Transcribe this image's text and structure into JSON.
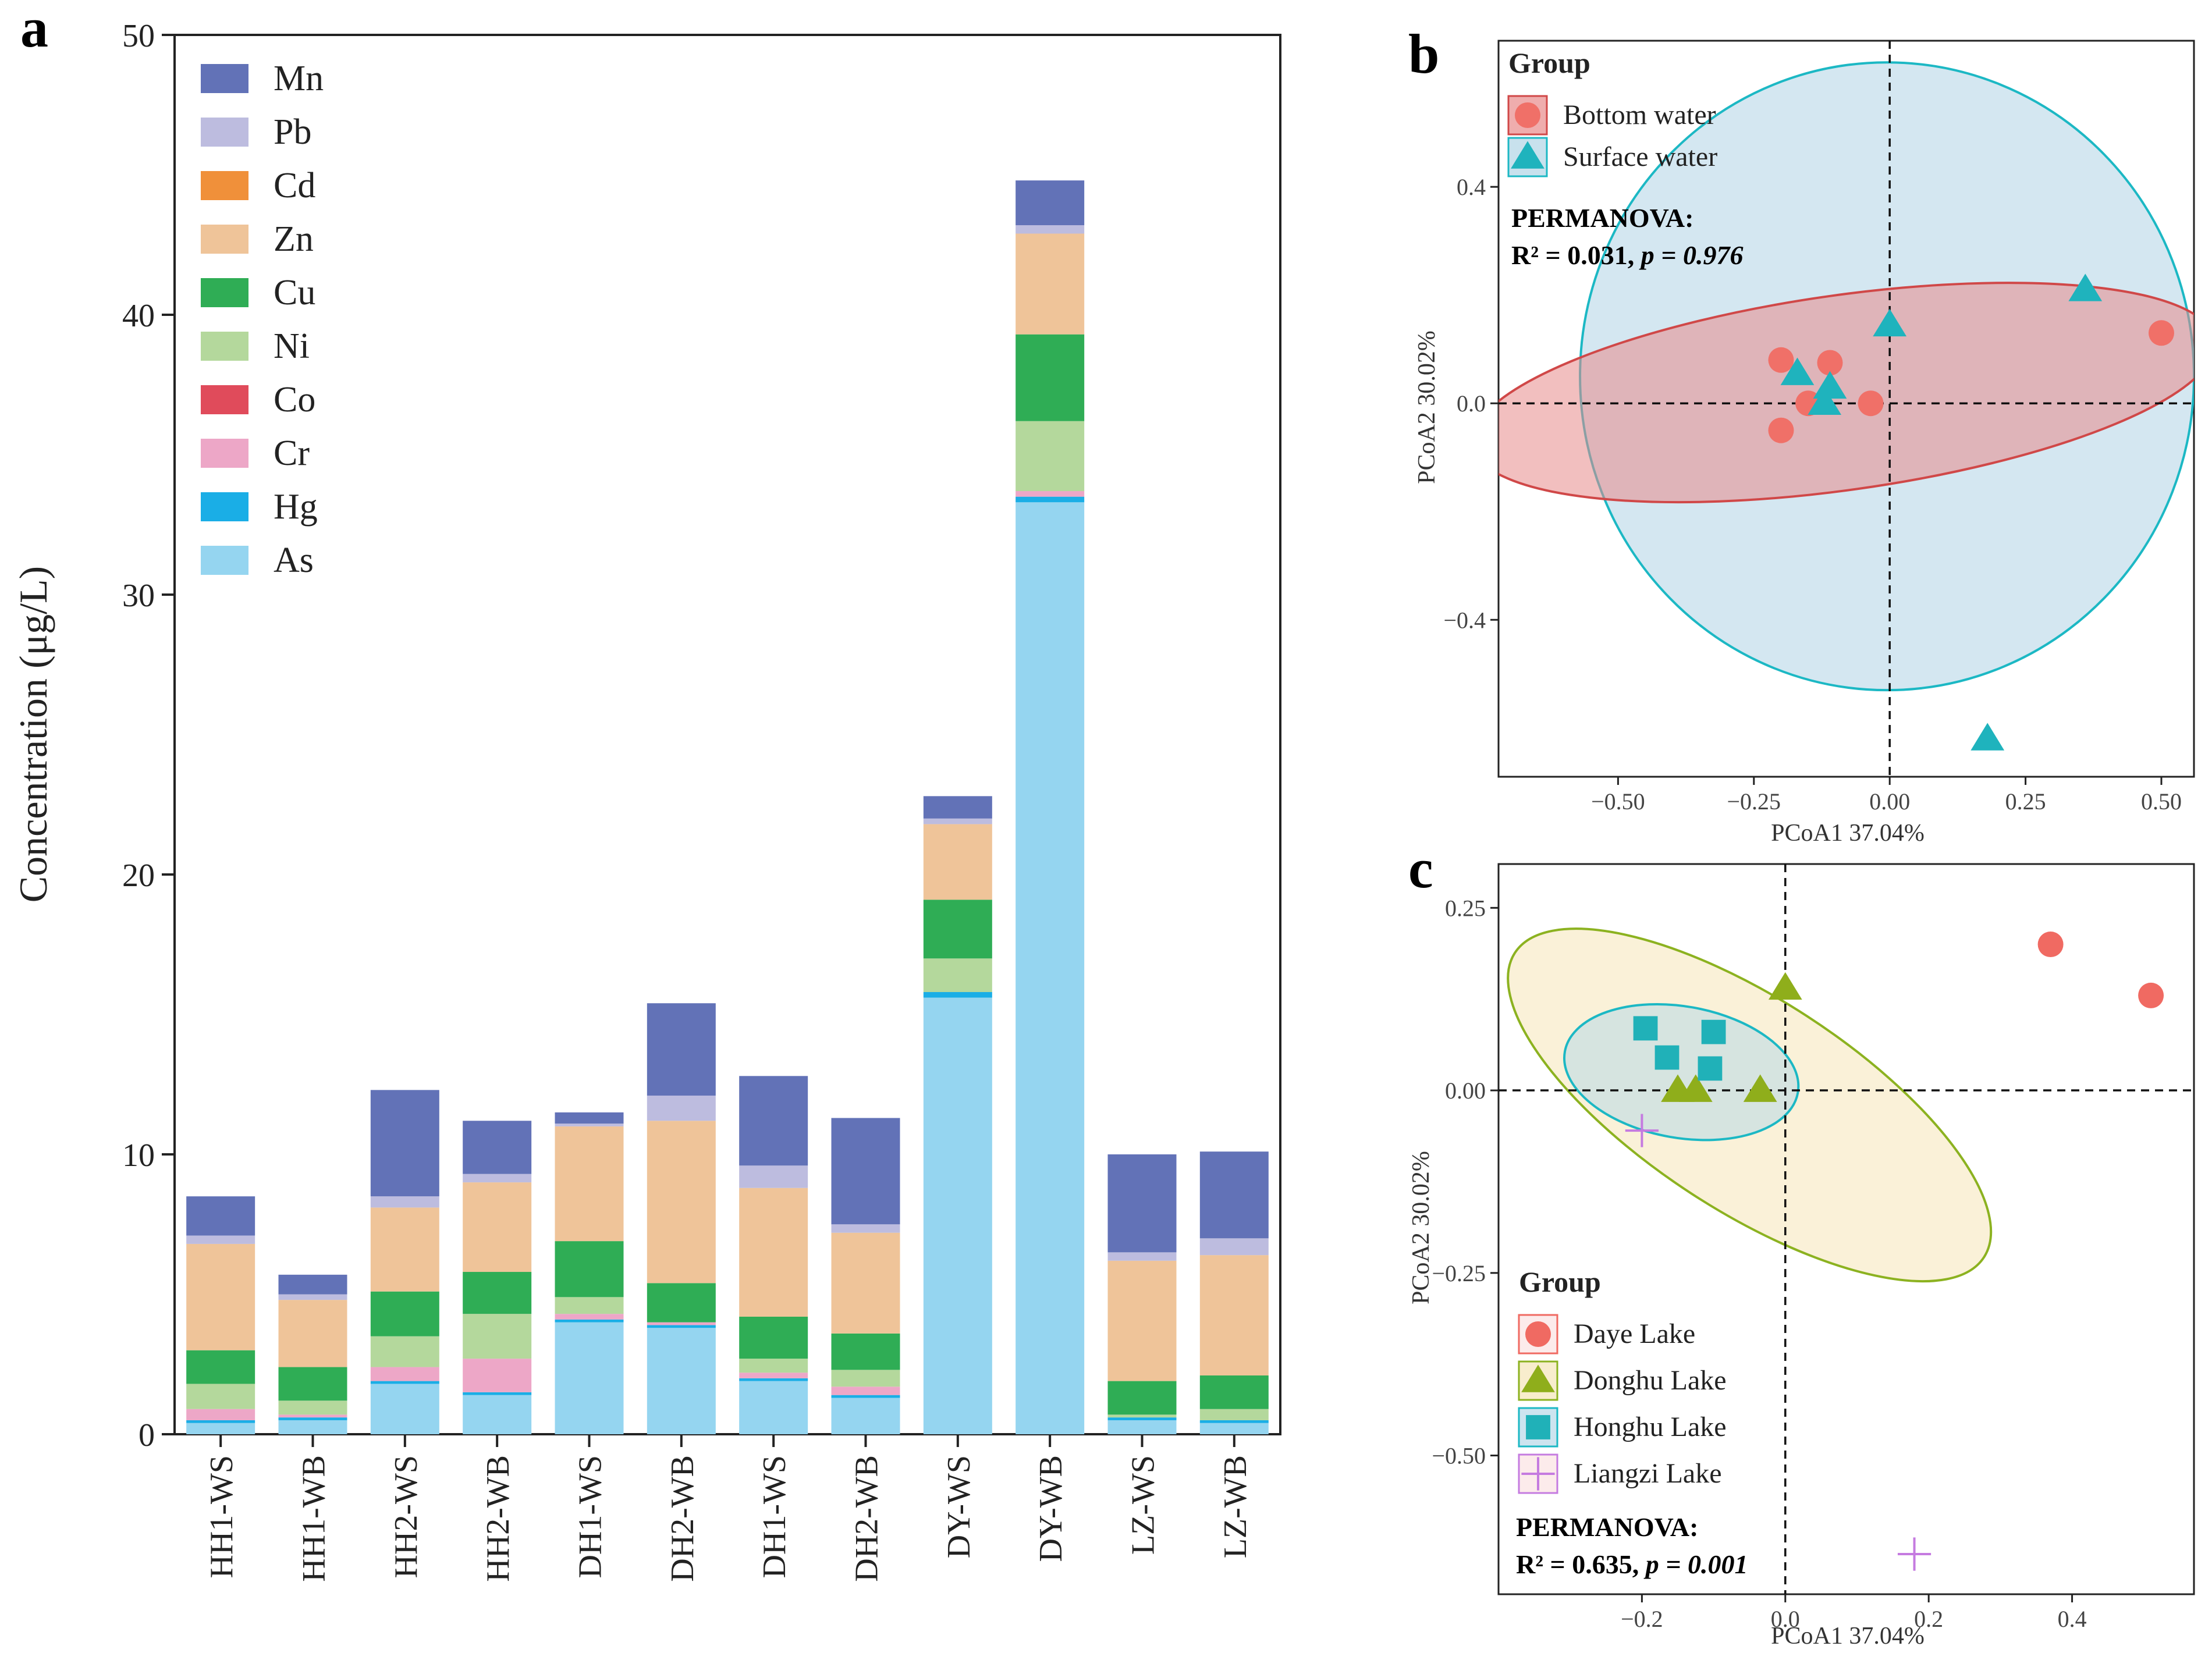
{
  "panel_labels": {
    "a": "a",
    "b": "b",
    "c": "c"
  },
  "chart_data": [
    {
      "type": "bar",
      "stacked": true,
      "panel": "a",
      "ylabel": "Concentration (μg/L)",
      "ylim": [
        0,
        50
      ],
      "yticks": [
        0,
        10,
        20,
        30,
        40,
        50
      ],
      "categories": [
        "HH1-WS",
        "HH1-WB",
        "HH2-WS",
        "HH2-WB",
        "DH1-WS",
        "DH2-WB",
        "DH1-WS",
        "DH2-WB",
        "DY-WS",
        "DY-WB",
        "LZ-WS",
        "LZ-WB"
      ],
      "series": [
        {
          "name": "As",
          "color": "#95d5f0",
          "values": [
            0.4,
            0.5,
            1.8,
            1.4,
            4.0,
            3.8,
            1.9,
            1.3,
            15.6,
            33.3,
            0.5,
            0.4
          ]
        },
        {
          "name": "Hg",
          "color": "#1aaee6",
          "values": [
            0.1,
            0.1,
            0.1,
            0.1,
            0.1,
            0.1,
            0.1,
            0.1,
            0.2,
            0.2,
            0.1,
            0.1
          ]
        },
        {
          "name": "Cr",
          "color": "#eda7c7",
          "values": [
            0.4,
            0.1,
            0.5,
            1.2,
            0.2,
            0.1,
            0.2,
            0.3,
            0.0,
            0.2,
            0.0,
            0.0
          ]
        },
        {
          "name": "Co",
          "color": "#e04b5b",
          "values": [
            0.0,
            0.0,
            0.0,
            0.0,
            0.0,
            0.0,
            0.0,
            0.0,
            0.0,
            0.0,
            0.0,
            0.0
          ]
        },
        {
          "name": "Ni",
          "color": "#b4d89c",
          "values": [
            0.9,
            0.5,
            1.1,
            1.6,
            0.6,
            0.0,
            0.5,
            0.6,
            1.2,
            2.5,
            0.1,
            0.4
          ]
        },
        {
          "name": "Cu",
          "color": "#2fad55",
          "values": [
            1.2,
            1.2,
            1.6,
            1.5,
            2.0,
            1.4,
            1.5,
            1.3,
            2.1,
            3.1,
            1.2,
            1.2
          ]
        },
        {
          "name": "Zn",
          "color": "#efc499",
          "values": [
            3.8,
            2.4,
            3.0,
            3.2,
            4.1,
            5.8,
            4.6,
            3.6,
            2.7,
            3.6,
            4.3,
            4.3
          ]
        },
        {
          "name": "Cd",
          "color": "#f0903a",
          "values": [
            0.0,
            0.0,
            0.0,
            0.0,
            0.0,
            0.0,
            0.0,
            0.0,
            0.0,
            0.0,
            0.0,
            0.0
          ]
        },
        {
          "name": "Pb",
          "color": "#bdbcdf",
          "values": [
            0.3,
            0.2,
            0.4,
            0.3,
            0.1,
            0.9,
            0.8,
            0.3,
            0.2,
            0.3,
            0.3,
            0.6
          ]
        },
        {
          "name": "Mn",
          "color": "#6272b7",
          "values": [
            1.4,
            0.7,
            3.8,
            1.9,
            0.4,
            3.3,
            3.2,
            3.8,
            0.8,
            1.6,
            3.5,
            3.1
          ]
        }
      ]
    },
    {
      "type": "scatter",
      "panel": "b",
      "xlabel": "PCoA1 37.04%",
      "ylabel": "PCoA2 30.02%",
      "xlim": [
        -0.72,
        0.56
      ],
      "ylim": [
        -0.69,
        0.67
      ],
      "xticks": [
        -0.5,
        -0.25,
        0.0,
        0.25,
        0.5
      ],
      "xtick_labels": [
        "−0.50",
        "−0.25",
        "0.00",
        "0.25",
        "0.50"
      ],
      "yticks": [
        -0.4,
        0.0,
        0.4
      ],
      "ytick_labels": [
        "−0.4",
        "0.0",
        "0.4"
      ],
      "legend_title": "Group",
      "stat_title": "PERMANOVA:",
      "stat_r2": "R² = 0.031, ",
      "stat_p": "p = 0.976",
      "series": [
        {
          "name": "Bottom water",
          "marker": "circle",
          "color": "#f07068",
          "points": [
            [
              -0.2,
              0.08
            ],
            [
              -0.11,
              0.075
            ],
            [
              -0.15,
              0.0
            ],
            [
              -0.035,
              0.0
            ],
            [
              -0.2,
              -0.05
            ],
            [
              0.5,
              0.13
            ]
          ],
          "ellipse": {
            "cx": -0.085,
            "cy": 0.02,
            "rx": 0.69,
            "ry": 0.18,
            "angle_deg": 8.0,
            "fill": "#e88a8a",
            "stroke": "#d04848"
          }
        },
        {
          "name": "Surface water",
          "marker": "triangle",
          "color": "#1fb3bd",
          "points": [
            [
              -0.17,
              0.055
            ],
            [
              -0.11,
              0.03
            ],
            [
              -0.12,
              0.0
            ],
            [
              0.0,
              0.145
            ],
            [
              0.36,
              0.21
            ],
            [
              0.18,
              -0.62
            ]
          ],
          "ellipse": {
            "cx": -0.005,
            "cy": 0.05,
            "rx": 0.565,
            "ry": 0.58,
            "angle_deg": 0.0,
            "fill": "#b0d4e6",
            "stroke": "#1cb8c4"
          }
        }
      ]
    },
    {
      "type": "scatter",
      "panel": "c",
      "xlabel": "PCoA1 37.04%",
      "ylabel": "PCoA2 30.02%",
      "xlim": [
        -0.4,
        0.57
      ],
      "ylim": [
        -0.69,
        0.31
      ],
      "xticks": [
        -0.2,
        0.0,
        0.2,
        0.4
      ],
      "xtick_labels": [
        "−0.2",
        "0.0",
        "0.2",
        "0.4"
      ],
      "yticks": [
        -0.5,
        -0.25,
        0.0,
        0.25
      ],
      "ytick_labels": [
        "−0.50",
        "−0.25",
        "0.00",
        "0.25"
      ],
      "legend_title": "Group",
      "stat_title": "PERMANOVA:",
      "stat_r2": "R² = 0.635, ",
      "stat_p": "p = 0.001",
      "series": [
        {
          "name": "Daye Lake",
          "marker": "circle",
          "color": "#f06a62",
          "points": [
            [
              0.37,
              0.2
            ],
            [
              0.51,
              0.13
            ]
          ],
          "ellipse": null
        },
        {
          "name": "Donghu Lake",
          "marker": "triangle",
          "color": "#8fae1b",
          "points": [
            [
              -0.15,
              0.0
            ],
            [
              -0.125,
              0.0
            ],
            [
              -0.035,
              0.0
            ],
            [
              0.0,
              0.14
            ]
          ],
          "ellipse": {
            "cx": -0.05,
            "cy": -0.02,
            "rx": 0.39,
            "ry": 0.145,
            "angle_deg": -33.0,
            "fill": "#f5e6b8",
            "stroke": "#8cb220"
          }
        },
        {
          "name": "Honghu Lake",
          "marker": "square",
          "color": "#20b1b8",
          "points": [
            [
              -0.195,
              0.085
            ],
            [
              -0.165,
              0.045
            ],
            [
              -0.1,
              0.08
            ],
            [
              -0.105,
              0.03
            ]
          ],
          "ellipse": {
            "cx": -0.145,
            "cy": 0.025,
            "rx": 0.165,
            "ry": 0.09,
            "angle_deg": -10.0,
            "fill": "#b8d8e8",
            "stroke": "#1cb8c4"
          }
        },
        {
          "name": "Liangzi Lake",
          "marker": "plus",
          "color": "#c57be0",
          "points": [
            [
              -0.2,
              -0.055
            ],
            [
              0.18,
              -0.635
            ]
          ],
          "ellipse": null
        }
      ]
    }
  ]
}
